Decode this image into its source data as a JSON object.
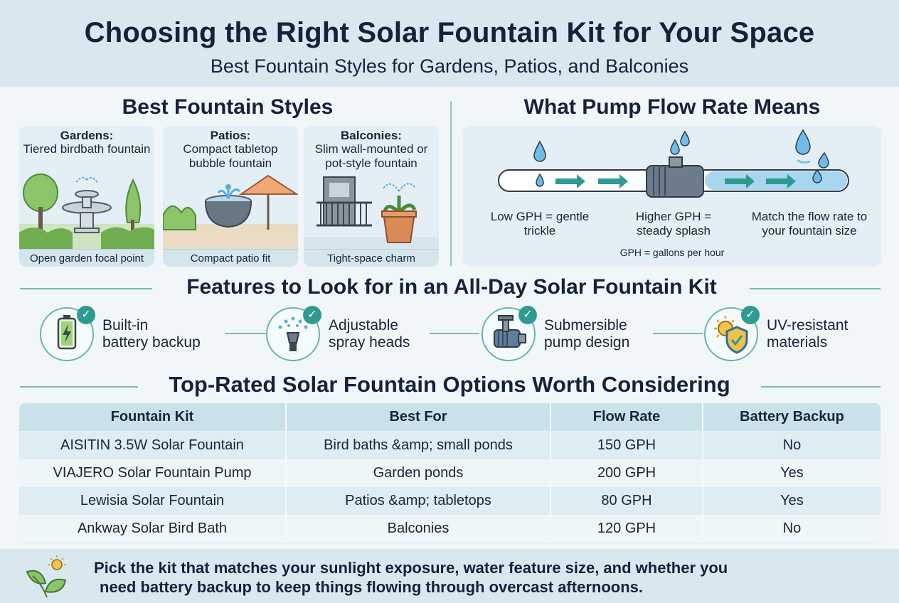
{
  "header": {
    "title": "Choosing the Right Solar Fountain Kit for Your Space",
    "subtitle": "Best Fountain Styles for Gardens, Patios, and Balconies"
  },
  "styles": {
    "title": "Best Fountain Styles",
    "cards": [
      {
        "heading": "Gardens:",
        "desc": "Tiered birdbath fountain",
        "footer": "Open garden focal point"
      },
      {
        "heading": "Patios:",
        "desc": "Compact tabletop bubble fountain",
        "footer": "Compact patio fit"
      },
      {
        "heading": "Balconies:",
        "desc": "Slim wall-mounted or pot-style fountain",
        "footer": "Tight-space charm"
      }
    ]
  },
  "flow": {
    "title": "What Pump Flow Rate Means",
    "labels": [
      "Low GPH = gentle trickle",
      "Higher GPH = steady splash",
      "Match the flow rate to your fountain size"
    ],
    "note": "GPH = gallons per hour"
  },
  "features": {
    "title": "Features to Look for in an All-Day Solar Fountain Kit",
    "items": [
      {
        "label_1": "Built-in",
        "label_2": "battery backup",
        "icon": "battery-icon"
      },
      {
        "label_1": "Adjustable",
        "label_2": "spray heads",
        "icon": "spray-head-icon"
      },
      {
        "label_1": "Submersible",
        "label_2": "pump design",
        "icon": "pump-icon"
      },
      {
        "label_1": "UV-resistant",
        "label_2": "materials",
        "icon": "uv-shield-icon"
      }
    ]
  },
  "options": {
    "title": "Top-Rated Solar Fountain Options Worth Considering",
    "columns": [
      "Fountain Kit",
      "Best For",
      "Flow Rate",
      "Battery Backup"
    ],
    "rows": [
      [
        "AISITIN 3.5W Solar Fountain",
        "Bird baths &amp; small ponds",
        "150 GPH",
        "No"
      ],
      [
        "VIAJERO Solar Fountain Pump",
        "Garden ponds",
        "200 GPH",
        "Yes"
      ],
      [
        "Lewisia Solar Fountain",
        "Patios &amp; tabletops",
        "80 GPH",
        "Yes"
      ],
      [
        "Ankway Solar Bird Bath",
        "Balconies",
        "120 GPH",
        "No"
      ]
    ]
  },
  "footer": {
    "line_1": "Pick the kit that matches your sunlight exposure, water feature size, and whether you",
    "line_2": "need battery backup to keep things flowing through overcast afternoons."
  },
  "colors": {
    "accent_teal": "#2e9a92",
    "water_blue": "#5aaedc",
    "heading_navy": "#16213a"
  }
}
